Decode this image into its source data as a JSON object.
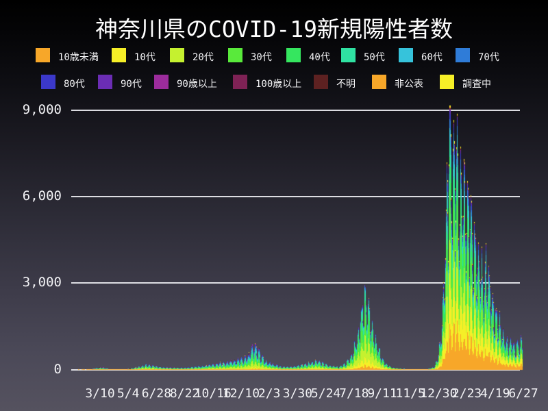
{
  "chart_data": {
    "type": "bar",
    "stacked": true,
    "title": "神奈川県のCOVID-19新規陽性者数",
    "legend_position": "top",
    "grid": true,
    "y_axis": {
      "tick_labels": [
        "0",
        "3,000",
        "6,000",
        "9,000"
      ],
      "tick_values": [
        0,
        3000,
        6000,
        9000
      ],
      "ylim": [
        0,
        9500
      ]
    },
    "x_axis": {
      "tick_labels": [
        "3/10",
        "5/4",
        "6/28",
        "8/22",
        "10/16",
        "12/10",
        "2/3",
        "3/30",
        "5/24",
        "7/18",
        "9/11",
        "11/5",
        "12/30",
        "2/23",
        "4/19",
        "6/27"
      ],
      "span_days": 893
    },
    "series": [
      {
        "name": "10歳未満",
        "color": "#F7A729"
      },
      {
        "name": "10代",
        "color": "#F6EF27"
      },
      {
        "name": "20代",
        "color": "#C5F12F"
      },
      {
        "name": "30代",
        "color": "#59EA3B"
      },
      {
        "name": "40代",
        "color": "#35E65F"
      },
      {
        "name": "50代",
        "color": "#2FE2A2"
      },
      {
        "name": "60代",
        "color": "#36C3DB"
      },
      {
        "name": "70代",
        "color": "#2F7CD8"
      },
      {
        "name": "80代",
        "color": "#3B38C9"
      },
      {
        "name": "90代",
        "color": "#6B2DB4"
      },
      {
        "name": "90歳以上",
        "color": "#9C2C9C"
      },
      {
        "name": "100歳以上",
        "color": "#7E2255"
      },
      {
        "name": "不明",
        "color": "#5D2121"
      },
      {
        "name": "非公表",
        "color": "#F7A729"
      },
      {
        "name": "調査中",
        "color": "#F6EF27"
      }
    ],
    "legend_rows": [
      [
        0,
        1,
        2,
        3,
        4,
        5,
        6,
        7
      ],
      [
        8,
        9,
        10,
        11,
        12,
        13,
        14
      ]
    ],
    "envelope_daily_total": [
      [
        0,
        0
      ],
      [
        8,
        0
      ],
      [
        19,
        2
      ],
      [
        28,
        4
      ],
      [
        42,
        25
      ],
      [
        51,
        65
      ],
      [
        60,
        90
      ],
      [
        69,
        45
      ],
      [
        79,
        15
      ],
      [
        92,
        6
      ],
      [
        110,
        20
      ],
      [
        130,
        80
      ],
      [
        148,
        190
      ],
      [
        160,
        150
      ],
      [
        178,
        90
      ],
      [
        205,
        65
      ],
      [
        232,
        75
      ],
      [
        259,
        130
      ],
      [
        286,
        210
      ],
      [
        313,
        300
      ],
      [
        336,
        390
      ],
      [
        350,
        540
      ],
      [
        360,
        920
      ],
      [
        370,
        700
      ],
      [
        385,
        330
      ],
      [
        401,
        190
      ],
      [
        419,
        100
      ],
      [
        438,
        105
      ],
      [
        458,
        175
      ],
      [
        476,
        270
      ],
      [
        485,
        330
      ],
      [
        496,
        255
      ],
      [
        512,
        140
      ],
      [
        530,
        95
      ],
      [
        543,
        230
      ],
      [
        556,
        560
      ],
      [
        565,
        1150
      ],
      [
        573,
        1950
      ],
      [
        580,
        2820
      ],
      [
        588,
        2400
      ],
      [
        598,
        1500
      ],
      [
        606,
        880
      ],
      [
        615,
        400
      ],
      [
        625,
        180
      ],
      [
        634,
        85
      ],
      [
        648,
        40
      ],
      [
        665,
        16
      ],
      [
        686,
        12
      ],
      [
        706,
        18
      ],
      [
        718,
        90
      ],
      [
        726,
        450
      ],
      [
        733,
        1500
      ],
      [
        740,
        4600
      ],
      [
        745,
        7600
      ],
      [
        751,
        9120
      ],
      [
        756,
        8100
      ],
      [
        762,
        8800
      ],
      [
        768,
        6600
      ],
      [
        775,
        7200
      ],
      [
        782,
        6100
      ],
      [
        789,
        6500
      ],
      [
        795,
        4800
      ],
      [
        802,
        4600
      ],
      [
        809,
        4300
      ],
      [
        816,
        3400
      ],
      [
        823,
        4150
      ],
      [
        829,
        2900
      ],
      [
        836,
        2300
      ],
      [
        844,
        2050
      ],
      [
        852,
        1500
      ],
      [
        860,
        1100
      ],
      [
        868,
        1000
      ],
      [
        876,
        850
      ],
      [
        884,
        950
      ],
      [
        892,
        1150
      ]
    ],
    "composition_keyframes": [
      {
        "day": 0,
        "fractions": [
          0.02,
          0.02,
          0.12,
          0.13,
          0.14,
          0.15,
          0.11,
          0.1,
          0.08,
          0.0,
          0.06,
          0.0,
          0.05,
          0.01,
          0.01
        ]
      },
      {
        "day": 140,
        "fractions": [
          0.03,
          0.04,
          0.28,
          0.18,
          0.13,
          0.11,
          0.07,
          0.06,
          0.05,
          0.0,
          0.03,
          0.0,
          0.01,
          0.005,
          0.005
        ]
      },
      {
        "day": 345,
        "fractions": [
          0.03,
          0.05,
          0.21,
          0.16,
          0.14,
          0.13,
          0.09,
          0.08,
          0.06,
          0.01,
          0.03,
          0.0,
          0.005,
          0.0025,
          0.0025
        ]
      },
      {
        "day": 480,
        "fractions": [
          0.04,
          0.06,
          0.24,
          0.18,
          0.16,
          0.14,
          0.07,
          0.05,
          0.03,
          0.01,
          0.015,
          0.001,
          0.002,
          0.001,
          0.001
        ]
      },
      {
        "day": 580,
        "fractions": [
          0.05,
          0.1,
          0.28,
          0.21,
          0.16,
          0.12,
          0.04,
          0.02,
          0.012,
          0.004,
          0.002,
          0.001,
          0.001,
          0.0005,
          0.0005
        ]
      },
      {
        "day": 700,
        "fractions": [
          0.05,
          0.1,
          0.3,
          0.2,
          0.15,
          0.1,
          0.05,
          0.03,
          0.01,
          0.004,
          0.002,
          0.001,
          0.001,
          0.001,
          0.001
        ]
      },
      {
        "day": 755,
        "fractions": [
          0.17,
          0.15,
          0.14,
          0.16,
          0.15,
          0.08,
          0.05,
          0.035,
          0.025,
          0.012,
          0.002,
          0.003,
          0.002,
          0.005,
          0.006
        ]
      },
      {
        "day": 892,
        "fractions": [
          0.18,
          0.17,
          0.13,
          0.15,
          0.14,
          0.08,
          0.05,
          0.04,
          0.028,
          0.015,
          0.002,
          0.003,
          0.001,
          0.003,
          0.005
        ]
      }
    ],
    "weekly_noise": {
      "base": 0.8,
      "amplitude": 0.27,
      "jitter": 0.16,
      "phase": 0.9,
      "max_value": 9150
    },
    "grid_color": "#ededf1"
  }
}
